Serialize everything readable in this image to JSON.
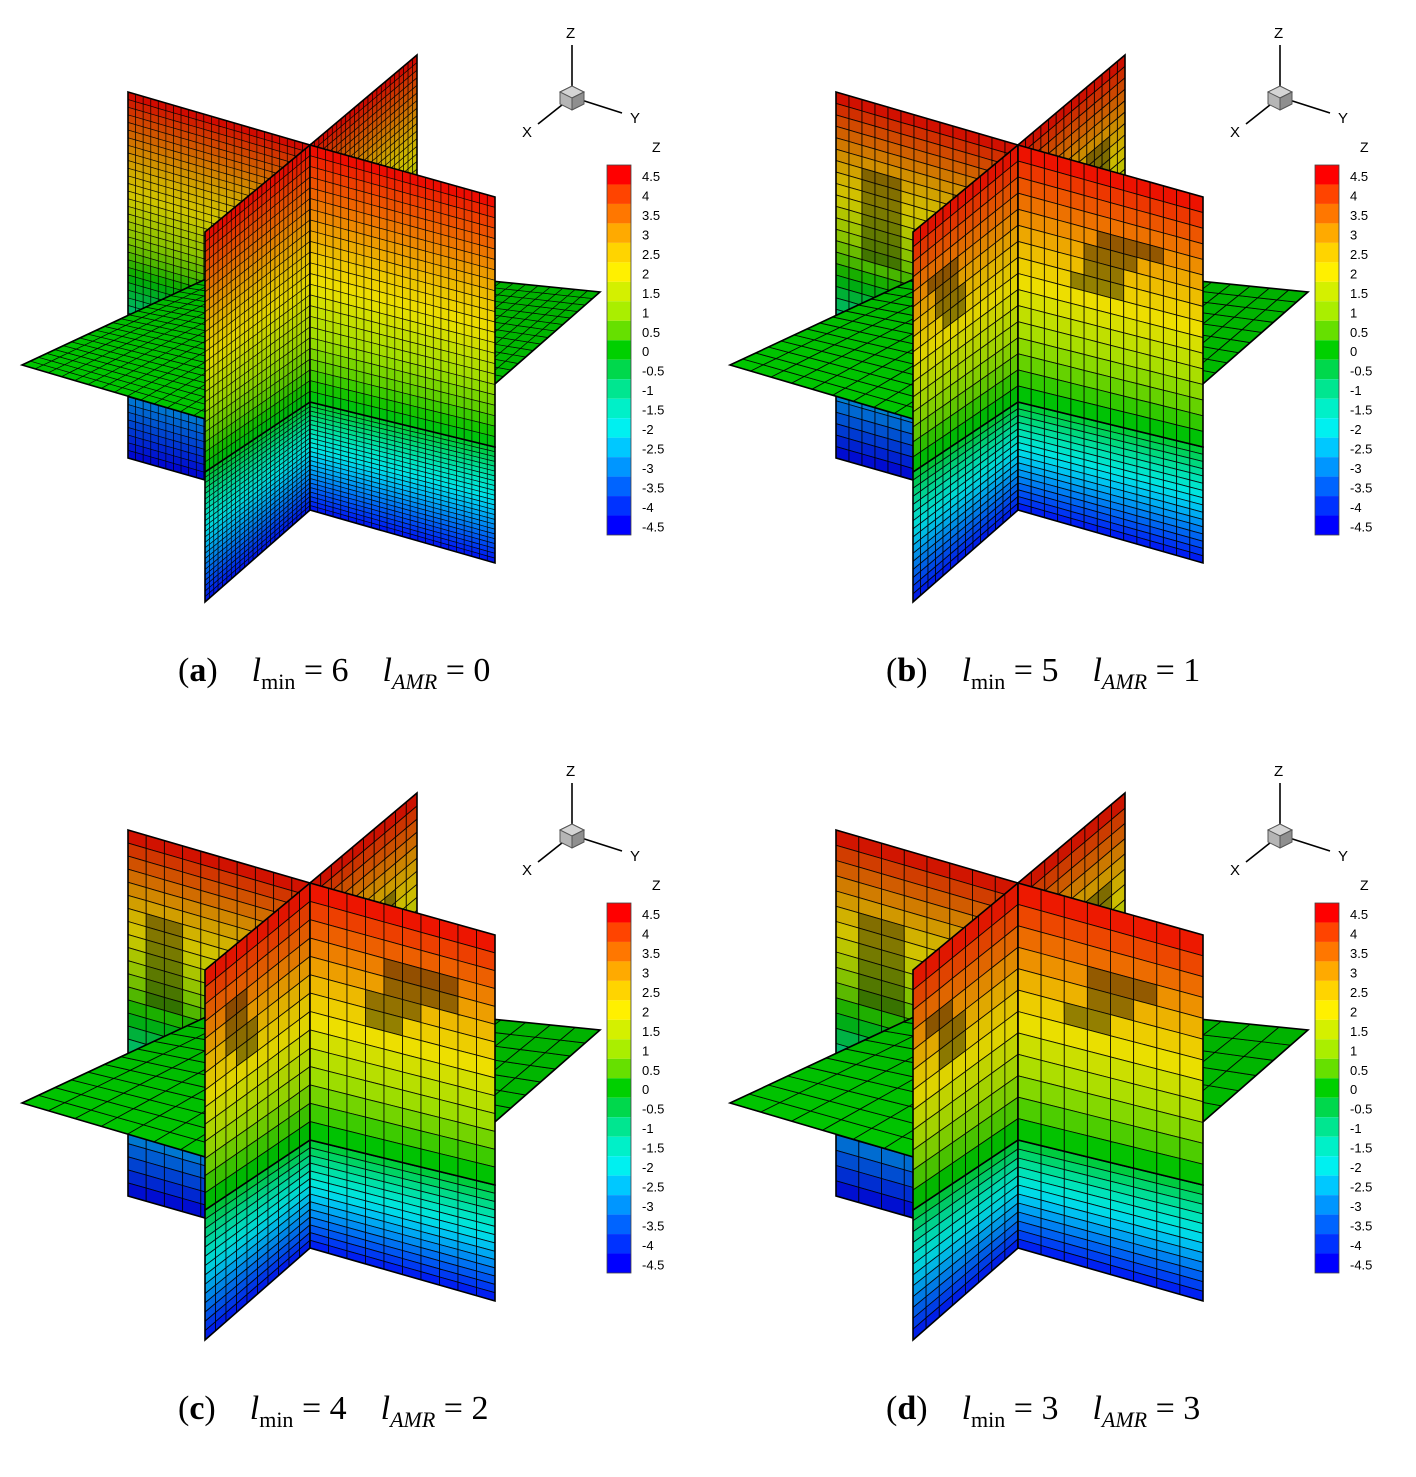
{
  "panels": [
    {
      "id": "a",
      "label": "a",
      "lmin": "6",
      "lamr": "0",
      "refine": 0
    },
    {
      "id": "b",
      "label": "b",
      "lmin": "5",
      "lamr": "1",
      "refine": 1
    },
    {
      "id": "c",
      "label": "c",
      "lmin": "4",
      "lamr": "2",
      "refine": 2
    },
    {
      "id": "d",
      "label": "d",
      "lmin": "3",
      "lamr": "3",
      "refine": 3
    }
  ],
  "caption_parts": {
    "open": "(",
    "close": ")",
    "eq": " = ",
    "l": "l",
    "min": "min",
    "amr": "AMR"
  },
  "legend": {
    "title": "Z",
    "levels": [
      "4.5",
      "4",
      "3.5",
      "3",
      "2.5",
      "2",
      "1.5",
      "1",
      "0.5",
      "0",
      "-0.5",
      "-1",
      "-1.5",
      "-2",
      "-2.5",
      "-3",
      "-3.5",
      "-4",
      "-4.5"
    ],
    "colors": [
      "#ff0000",
      "#ff4400",
      "#ff7700",
      "#ffaa00",
      "#ffd400",
      "#fff000",
      "#d4f000",
      "#aaee00",
      "#66e000",
      "#00d000",
      "#00d84c",
      "#00e690",
      "#00f0c8",
      "#00f0f0",
      "#00c8ff",
      "#0096ff",
      "#0064ff",
      "#0032ff",
      "#0000ff"
    ]
  },
  "axes_triad": {
    "x": "X",
    "y": "Y",
    "z": "Z"
  },
  "colors": {
    "grid_line": "#000000",
    "frame": "#000000"
  }
}
